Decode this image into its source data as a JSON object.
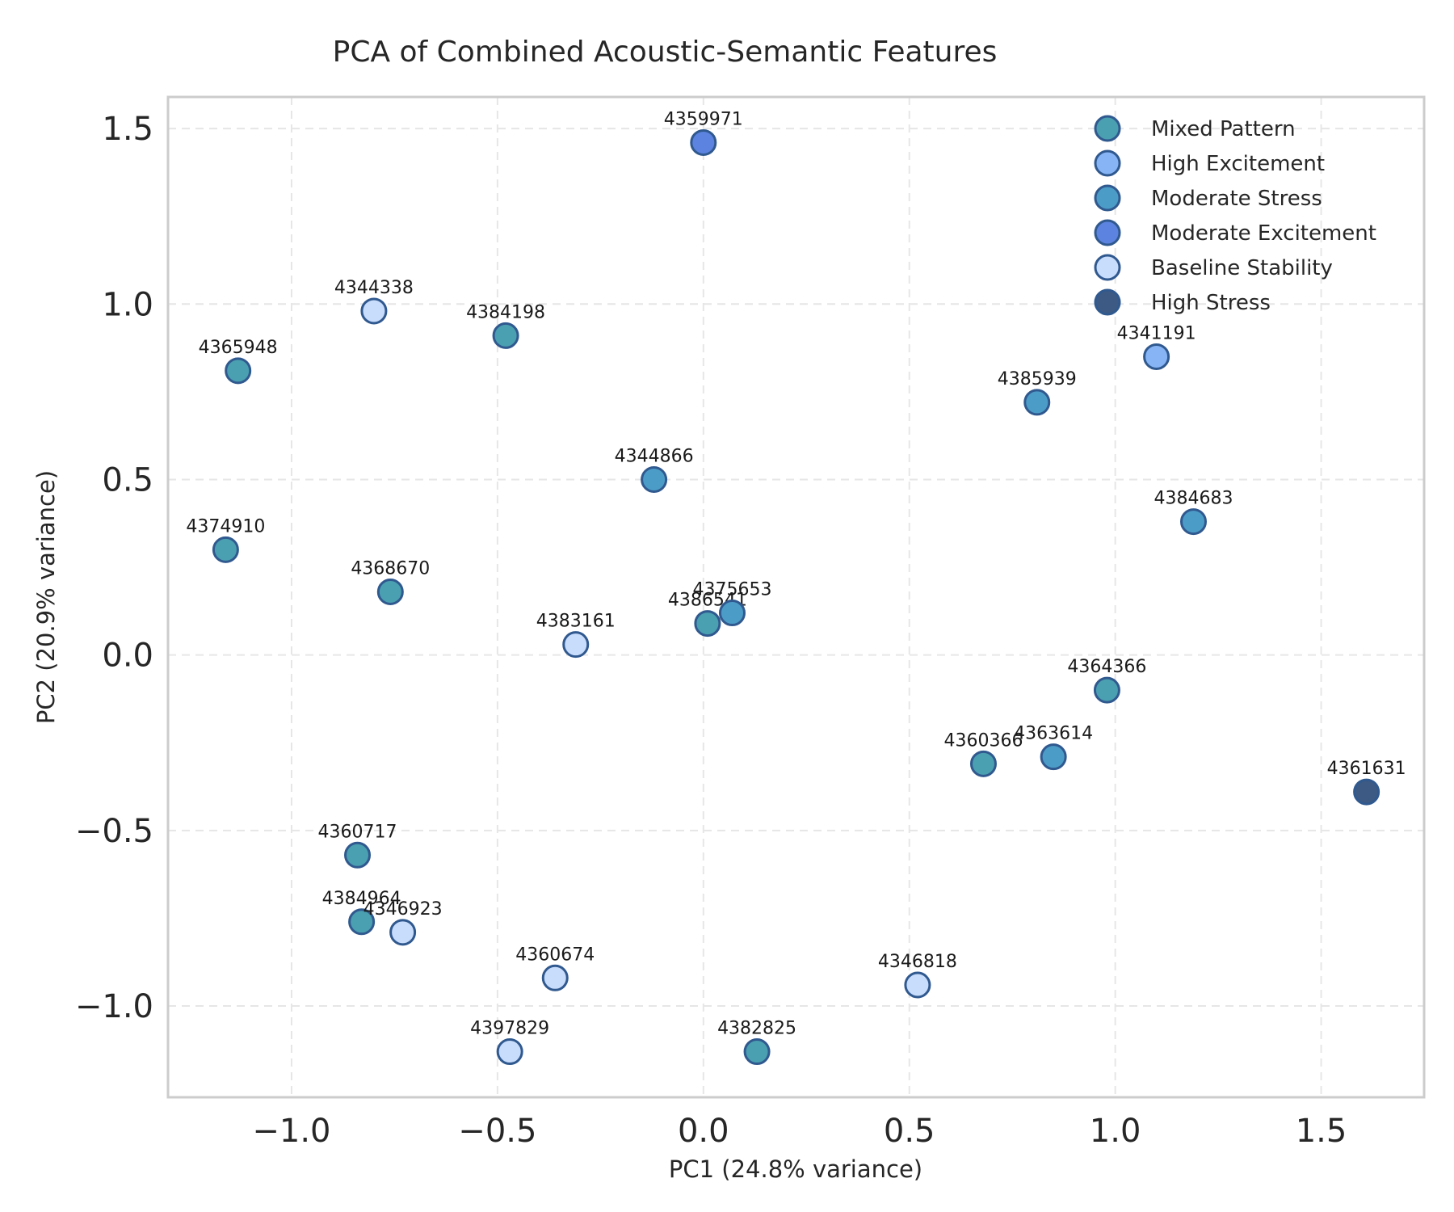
{
  "chart_data": {
    "type": "scatter",
    "title": "PCA of Combined Acoustic-Semantic Features",
    "xlabel": "PC1 (24.8% variance)",
    "ylabel": "PC2 (20.9% variance)",
    "xlim": [
      -1.3,
      1.75
    ],
    "ylim": [
      -1.26,
      1.59
    ],
    "xticks": [
      -1.0,
      -0.5,
      0.0,
      0.5,
      1.0,
      1.5
    ],
    "xtick_labels": [
      "−1.0",
      "−0.5",
      "0.0",
      "0.5",
      "1.0",
      "1.5"
    ],
    "yticks": [
      -1.0,
      -0.5,
      0.0,
      0.5,
      1.0,
      1.5
    ],
    "ytick_labels": [
      "−1.0",
      "−0.5",
      "0.0",
      "0.5",
      "1.0",
      "1.5"
    ],
    "grid": true,
    "legend_position": "top-right",
    "series": [
      {
        "name": "Mixed Pattern",
        "color": "#4a9fb0",
        "points": [
          {
            "label": "4365948",
            "x": -1.13,
            "y": 0.81
          },
          {
            "label": "4384198",
            "x": -0.48,
            "y": 0.91
          },
          {
            "label": "4374910",
            "x": -1.16,
            "y": 0.3
          },
          {
            "label": "4368670",
            "x": -0.76,
            "y": 0.18
          },
          {
            "label": "4386541",
            "x": 0.01,
            "y": 0.09
          },
          {
            "label": "4364366",
            "x": 0.98,
            "y": -0.1
          },
          {
            "label": "4360366",
            "x": 0.68,
            "y": -0.31
          },
          {
            "label": "4360717",
            "x": -0.84,
            "y": -0.57
          },
          {
            "label": "4384964",
            "x": -0.83,
            "y": -0.76
          },
          {
            "label": "4382825",
            "x": 0.13,
            "y": -1.13
          }
        ]
      },
      {
        "name": "High Excitement",
        "color": "#86b4f5",
        "points": [
          {
            "label": "4341191",
            "x": 1.1,
            "y": 0.85
          }
        ]
      },
      {
        "name": "Moderate Stress",
        "color": "#4c9cc8",
        "points": [
          {
            "label": "4385939",
            "x": 0.81,
            "y": 0.72
          },
          {
            "label": "4344866",
            "x": -0.12,
            "y": 0.5
          },
          {
            "label": "4384683",
            "x": 1.19,
            "y": 0.38
          },
          {
            "label": "4375653",
            "x": 0.07,
            "y": 0.12
          },
          {
            "label": "4363614",
            "x": 0.85,
            "y": -0.29
          }
        ]
      },
      {
        "name": "Moderate Excitement",
        "color": "#5b83df",
        "points": [
          {
            "label": "4359971",
            "x": 0.0,
            "y": 1.46
          }
        ]
      },
      {
        "name": "Baseline Stability",
        "color": "#c8dcfb",
        "points": [
          {
            "label": "4344338",
            "x": -0.8,
            "y": 0.98
          },
          {
            "label": "4383161",
            "x": -0.31,
            "y": 0.03
          },
          {
            "label": "4346923",
            "x": -0.73,
            "y": -0.79
          },
          {
            "label": "4360674",
            "x": -0.36,
            "y": -0.92
          },
          {
            "label": "4346818",
            "x": 0.52,
            "y": -0.94
          },
          {
            "label": "4397829",
            "x": -0.47,
            "y": -1.13
          }
        ]
      },
      {
        "name": "High Stress",
        "color": "#3c5a83",
        "points": [
          {
            "label": "4361631",
            "x": 1.61,
            "y": -0.39
          }
        ]
      }
    ]
  }
}
